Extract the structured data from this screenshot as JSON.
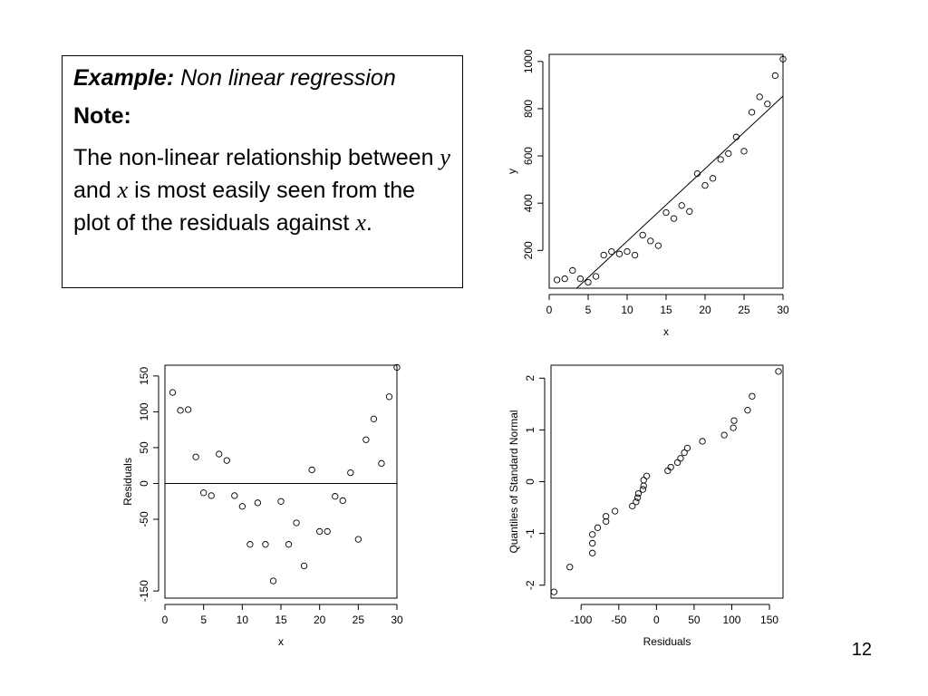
{
  "note": {
    "title_bold": "Example:",
    "title_rest": " Non linear regression",
    "heading": "Note:",
    "body_1": "The non-linear relationship between ",
    "var_y": "y",
    "body_2": " and ",
    "var_x": "x",
    "body_3": " is most easily seen from the plot of the residuals against ",
    "var_x2": "x",
    "body_4": "."
  },
  "page_number": "12",
  "chart_data": [
    {
      "type": "scatter",
      "title": "",
      "xlabel": "x",
      "ylabel": "y",
      "xlim": [
        0,
        30
      ],
      "ylim": [
        40,
        1030
      ],
      "xticks": [
        0,
        5,
        10,
        15,
        20,
        25,
        30
      ],
      "yticks": [
        200,
        400,
        600,
        800,
        1000
      ],
      "x": [
        1,
        2,
        3,
        4,
        5,
        6,
        7,
        8,
        9,
        10,
        11,
        12,
        13,
        14,
        15,
        16,
        17,
        18,
        19,
        20,
        21,
        22,
        23,
        24,
        25,
        26,
        27,
        28,
        29,
        30
      ],
      "y": [
        75,
        80,
        115,
        80,
        65,
        90,
        180,
        195,
        185,
        195,
        180,
        265,
        240,
        220,
        360,
        335,
        390,
        365,
        525,
        475,
        505,
        585,
        610,
        680,
        620,
        785,
        850,
        820,
        940,
        1010
      ],
      "fit_line": {
        "x": [
          3.2,
          31.2
        ],
        "y": [
          30,
          890
        ]
      },
      "grid": false,
      "legend": "none"
    },
    {
      "type": "scatter",
      "title": "",
      "xlabel": "x",
      "ylabel": "Residuals",
      "xlim": [
        0,
        30
      ],
      "ylim": [
        -160,
        165
      ],
      "xticks": [
        0,
        5,
        10,
        15,
        20,
        25,
        30
      ],
      "yticks": [
        -150,
        -50,
        0,
        50,
        100,
        150
      ],
      "x": [
        1,
        2,
        3,
        4,
        5,
        6,
        7,
        8,
        9,
        10,
        11,
        12,
        13,
        14,
        15,
        16,
        17,
        18,
        19,
        20,
        21,
        22,
        23,
        24,
        25,
        26,
        27,
        28,
        29,
        30
      ],
      "y": [
        127,
        102,
        103,
        37,
        -13,
        -17,
        41,
        32,
        -17,
        -32,
        -85,
        -27,
        -85,
        -136,
        -25,
        -85,
        -55,
        -115,
        19,
        -67,
        -67,
        -18,
        -24,
        15,
        -78,
        61,
        90,
        28,
        121,
        162
      ],
      "reference_line": 0,
      "grid": false,
      "legend": "none"
    },
    {
      "type": "scatter",
      "title": "",
      "xlabel": "Residuals",
      "ylabel": "Quantiles of Standard Normal",
      "xlim": [
        -140,
        168
      ],
      "ylim": [
        -2.25,
        2.25
      ],
      "xticks": [
        -100,
        -50,
        0,
        50,
        100,
        150
      ],
      "xtick_labels": [
        "-100",
        "-50",
        "0",
        "50",
        "100",
        "150"
      ],
      "yticks": [
        -2,
        -1,
        0,
        1,
        2
      ],
      "x": [
        -136,
        -115,
        -85,
        -85,
        -85,
        -78,
        -67,
        -67,
        -55,
        -32,
        -27,
        -25,
        -24,
        -18,
        -17,
        -17,
        -13,
        15,
        19,
        28,
        32,
        37,
        41,
        61,
        90,
        102,
        103,
        121,
        127,
        162
      ],
      "y": [
        -2.13,
        -1.65,
        -1.38,
        -1.19,
        -1.02,
        -0.89,
        -0.77,
        -0.67,
        -0.57,
        -0.47,
        -0.39,
        -0.31,
        -0.23,
        -0.15,
        -0.08,
        0.03,
        0.11,
        0.21,
        0.28,
        0.37,
        0.45,
        0.56,
        0.65,
        0.78,
        0.9,
        1.04,
        1.18,
        1.38,
        1.65,
        2.13
      ],
      "grid": false,
      "legend": "none"
    }
  ]
}
